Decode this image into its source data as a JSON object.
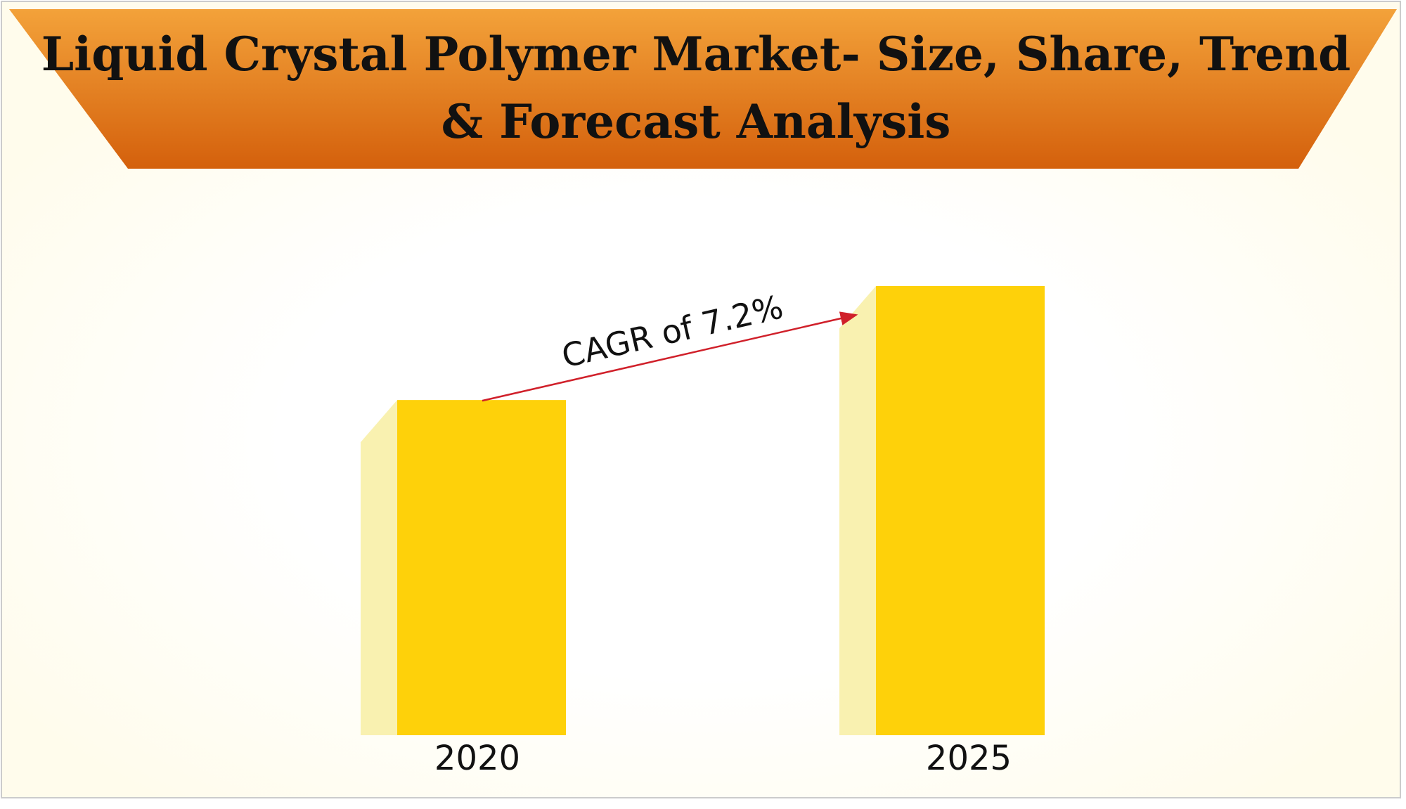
{
  "chart_data": {
    "type": "bar",
    "title": "Liquid Crystal Polymer Market- Size, Share, Trend & Forecast Analysis",
    "title_lines": [
      "Liquid Crystal Polymer Market- Size, Share, Trend",
      "& Forecast Analysis"
    ],
    "annotation": "CAGR of 7.2%",
    "categories": [
      "2020",
      "2025"
    ],
    "values": [
      100,
      134
    ],
    "color": "#fed10a",
    "shadow_color": "#f9f1b0",
    "arrow_color": "#d0202a"
  }
}
